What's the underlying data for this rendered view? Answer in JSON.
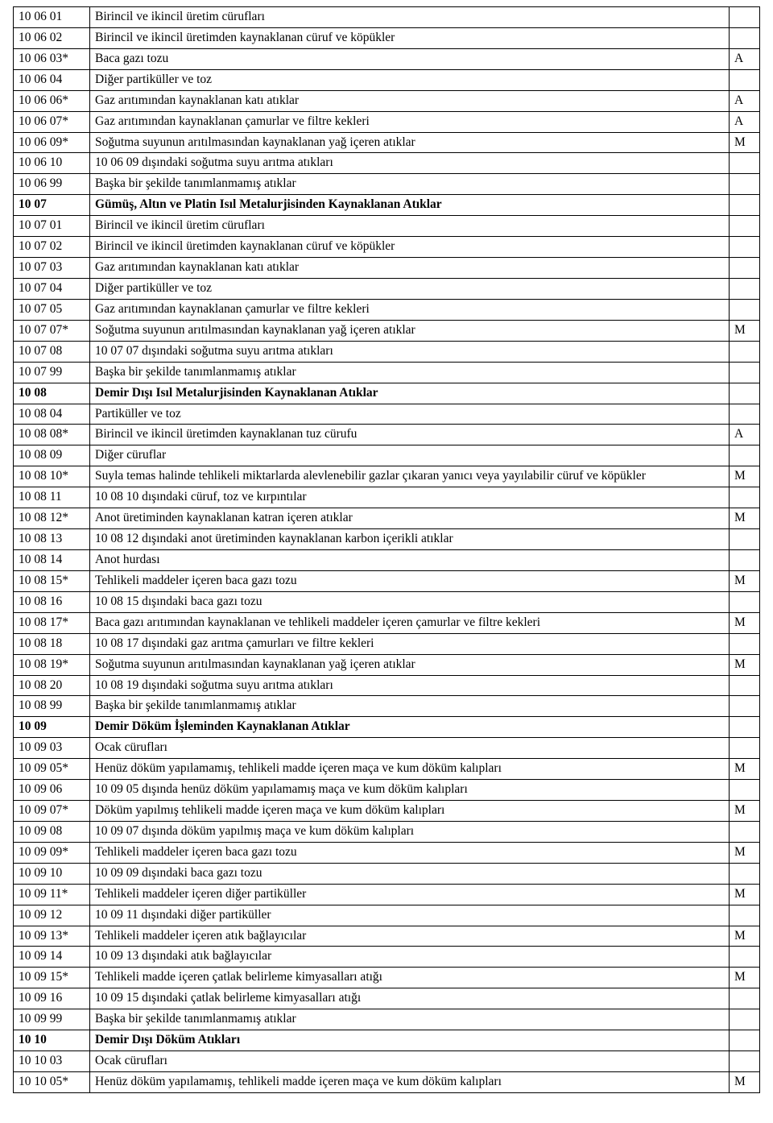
{
  "rows": [
    {
      "code": "10 06 01",
      "desc": "Birincil ve ikincil üretim cürufları",
      "hazard": ""
    },
    {
      "code": "10 06 02",
      "desc": "Birincil ve ikincil üretimden kaynaklanan cüruf ve köpükler",
      "hazard": ""
    },
    {
      "code": "10 06 03*",
      "desc": "Baca gazı tozu",
      "hazard": "A"
    },
    {
      "code": "10 06 04",
      "desc": "Diğer partiküller ve toz",
      "hazard": ""
    },
    {
      "code": "10 06 06*",
      "desc": "Gaz arıtımından kaynaklanan katı atıklar",
      "hazard": "A"
    },
    {
      "code": "10 06 07*",
      "desc": "Gaz arıtımından kaynaklanan çamurlar ve filtre kekleri",
      "hazard": "A"
    },
    {
      "code": "10 06 09*",
      "desc": "Soğutma suyunun arıtılmasından kaynaklanan yağ içeren atıklar",
      "hazard": "M"
    },
    {
      "code": "10 06 10",
      "desc": "10 06 09 dışındaki soğutma suyu arıtma atıkları",
      "hazard": ""
    },
    {
      "code": "10 06 99",
      "desc": "Başka bir şekilde tanımlanmamış atıklar",
      "hazard": ""
    },
    {
      "code": "10 07",
      "desc": "Gümüş, Altın ve Platin Isıl Metalurjisinden Kaynaklanan Atıklar",
      "hazard": "",
      "bold": true
    },
    {
      "code": "10 07 01",
      "desc": "Birincil ve ikincil üretim cürufları",
      "hazard": ""
    },
    {
      "code": "10 07 02",
      "desc": "Birincil ve ikincil üretimden kaynaklanan cüruf ve köpükler",
      "hazard": ""
    },
    {
      "code": "10 07 03",
      "desc": "Gaz arıtımından kaynaklanan katı atıklar",
      "hazard": ""
    },
    {
      "code": "10 07 04",
      "desc": "Diğer partiküller ve toz",
      "hazard": ""
    },
    {
      "code": "10 07 05",
      "desc": "Gaz arıtımından kaynaklanan çamurlar ve filtre kekleri",
      "hazard": ""
    },
    {
      "code": "10 07 07*",
      "desc": "Soğutma suyunun arıtılmasından kaynaklanan yağ içeren atıklar",
      "hazard": "M"
    },
    {
      "code": "10 07 08",
      "desc": "10 07 07 dışındaki soğutma suyu arıtma atıkları",
      "hazard": ""
    },
    {
      "code": "10 07 99",
      "desc": "Başka bir şekilde tanımlanmamış atıklar",
      "hazard": ""
    },
    {
      "code": "10 08",
      "desc": "Demir Dışı Isıl Metalurjisinden Kaynaklanan Atıklar",
      "hazard": "",
      "bold": true
    },
    {
      "code": "10 08 04",
      "desc": "Partiküller ve toz",
      "hazard": ""
    },
    {
      "code": "10 08 08*",
      "desc": "Birincil ve ikincil üretimden kaynaklanan tuz cürufu",
      "hazard": "A"
    },
    {
      "code": "10 08 09",
      "desc": "Diğer cüruflar",
      "hazard": ""
    },
    {
      "code": "10 08 10*",
      "desc": "Suyla temas halinde tehlikeli miktarlarda alevlenebilir gazlar çıkaran yanıcı veya yayılabilir cüruf ve köpükler",
      "hazard": "M",
      "justify": true
    },
    {
      "code": "10 08 11",
      "desc": "10 08 10 dışındaki cüruf, toz ve kırpıntılar",
      "hazard": ""
    },
    {
      "code": "10 08 12*",
      "desc": "Anot üretiminden kaynaklanan katran içeren atıklar",
      "hazard": "M"
    },
    {
      "code": "10 08 13",
      "desc": "10 08 12 dışındaki anot üretiminden kaynaklanan karbon içerikli atıklar",
      "hazard": ""
    },
    {
      "code": "10 08 14",
      "desc": "Anot hurdası",
      "hazard": ""
    },
    {
      "code": "10 08 15*",
      "desc": "Tehlikeli maddeler içeren baca gazı tozu",
      "hazard": "M"
    },
    {
      "code": "10 08 16",
      "desc": "10 08 15 dışındaki baca gazı tozu",
      "hazard": ""
    },
    {
      "code": "10 08 17*",
      "desc": "Baca gazı arıtımından kaynaklanan ve tehlikeli maddeler içeren çamurlar ve filtre kekleri",
      "hazard": "M"
    },
    {
      "code": "10 08 18",
      "desc": "10 08 17 dışındaki gaz arıtma çamurları ve filtre kekleri",
      "hazard": ""
    },
    {
      "code": "10 08 19*",
      "desc": "Soğutma suyunun arıtılmasından kaynaklanan yağ içeren atıklar",
      "hazard": "M"
    },
    {
      "code": "10 08 20",
      "desc": "10 08 19 dışındaki soğutma suyu arıtma atıkları",
      "hazard": ""
    },
    {
      "code": "10 08 99",
      "desc": "Başka bir şekilde tanımlanmamış atıklar",
      "hazard": ""
    },
    {
      "code": "10 09",
      "desc": "Demir Döküm İşleminden Kaynaklanan Atıklar",
      "hazard": "",
      "bold": true
    },
    {
      "code": "10 09 03",
      "desc": "Ocak cürufları",
      "hazard": ""
    },
    {
      "code": "10 09 05*",
      "desc": "Henüz döküm yapılamamış, tehlikeli madde içeren maça ve kum döküm kalıpları",
      "hazard": "M"
    },
    {
      "code": "10 09 06",
      "desc": "10 09 05 dışında henüz döküm yapılamamış maça ve kum döküm kalıpları",
      "hazard": ""
    },
    {
      "code": "10 09 07*",
      "desc": "Döküm yapılmış tehlikeli madde içeren maça ve kum döküm kalıpları",
      "hazard": "M"
    },
    {
      "code": "10 09 08",
      "desc": "10 09 07 dışında döküm yapılmış maça ve kum döküm kalıpları",
      "hazard": ""
    },
    {
      "code": "10 09 09*",
      "desc": "Tehlikeli maddeler içeren baca gazı tozu",
      "hazard": "M"
    },
    {
      "code": "10 09 10",
      "desc": "10 09 09 dışındaki baca gazı tozu",
      "hazard": ""
    },
    {
      "code": "10 09 11*",
      "desc": "Tehlikeli maddeler içeren diğer partiküller",
      "hazard": "M"
    },
    {
      "code": "10 09 12",
      "desc": "10 09 11 dışındaki diğer partiküller",
      "hazard": ""
    },
    {
      "code": "10 09 13*",
      "desc": "Tehlikeli maddeler içeren atık bağlayıcılar",
      "hazard": "M"
    },
    {
      "code": "10 09 14",
      "desc": "10 09 13 dışındaki atık bağlayıcılar",
      "hazard": ""
    },
    {
      "code": "10 09 15*",
      "desc": "Tehlikeli madde içeren çatlak belirleme kimyasalları atığı",
      "hazard": "M"
    },
    {
      "code": "10 09 16",
      "desc": "10 09 15 dışındaki çatlak belirleme kimyasalları atığı",
      "hazard": ""
    },
    {
      "code": "10 09 99",
      "desc": "Başka bir şekilde tanımlanmamış atıklar",
      "hazard": ""
    },
    {
      "code": "10 10",
      "desc": "Demir Dışı Döküm Atıkları",
      "hazard": "",
      "bold": true
    },
    {
      "code": "10 10 03",
      "desc": "Ocak cürufları",
      "hazard": ""
    },
    {
      "code": "10 10 05*",
      "desc": "Henüz döküm yapılamamış, tehlikeli madde içeren maça ve kum döküm kalıpları",
      "hazard": "M"
    }
  ]
}
